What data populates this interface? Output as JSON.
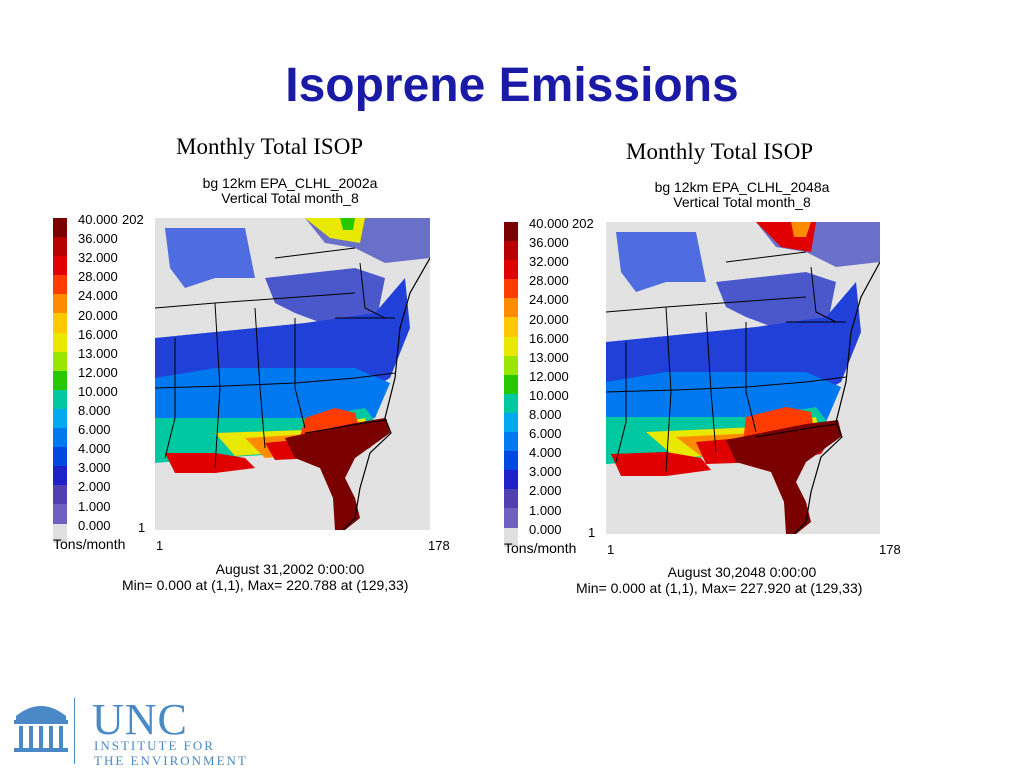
{
  "slide": {
    "title": "Isoprene Emissions"
  },
  "legend": {
    "levels": [
      "40.000",
      "36.000",
      "32.000",
      "28.000",
      "24.000",
      "20.000",
      "16.000",
      "13.000",
      "12.000",
      "10.000",
      "8.000",
      "6.000",
      "4.000",
      "3.000",
      "2.000",
      "1.000",
      "0.000"
    ],
    "colors": [
      "#7a0000",
      "#b80000",
      "#e00000",
      "#ff3c00",
      "#ff8c00",
      "#ffc800",
      "#e8e800",
      "#9ae600",
      "#28c800",
      "#00c8a0",
      "#00a8f0",
      "#0078f0",
      "#0048e0",
      "#2020c8",
      "#5040b0",
      "#7060c0",
      "#e0e0e0"
    ],
    "unit": "Tons/month"
  },
  "panels": [
    {
      "title": "Monthly Total ISOP",
      "line1": "bg 12km EPA_CLHL_2002a",
      "line2": "Vertical Total  month_8",
      "ymax": "202",
      "ymin": "1",
      "xmin": "1",
      "xmax": "178",
      "date": "August 31,2002 0:00:00",
      "minmax": "Min=   0.000 at (1,1), Max= 220.788 at (129,33)"
    },
    {
      "title": "Monthly Total ISOP",
      "line1": "bg 12km EPA_CLHL_2048a",
      "line2": "Vertical Total  month_8",
      "ymax": "202",
      "ymin": "1",
      "xmin": "1",
      "xmax": "178",
      "date": "August 30,2048 0:00:00",
      "minmax": "Min=   0.000 at (1,1), Max= 227.920 at (129,33)"
    }
  ],
  "logo": {
    "name": "UNC",
    "line1": "INSTITUTE FOR",
    "line2": "THE ENVIRONMENT",
    "color": "#4b89c6"
  }
}
